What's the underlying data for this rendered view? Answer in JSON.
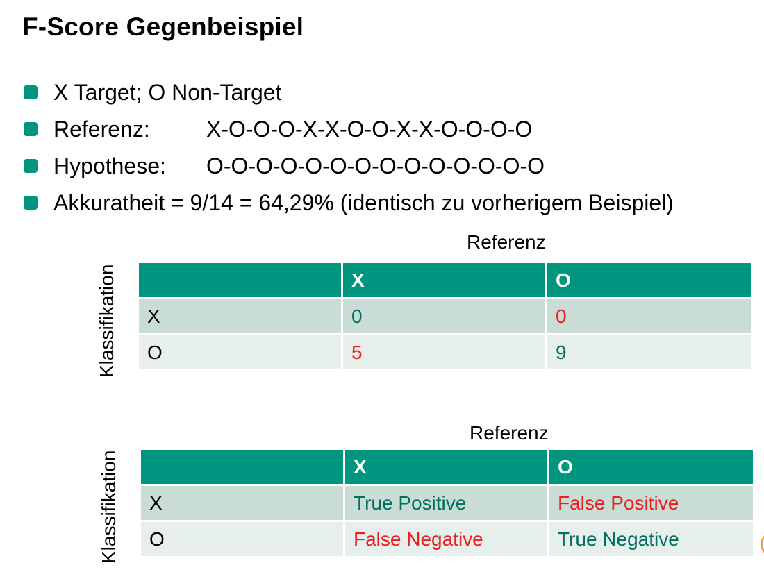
{
  "slide": {
    "title": "F-Score Gegenbeispiel",
    "bullets": [
      {
        "text": "X Target; O Non-Target",
        "value": ""
      },
      {
        "text": "Referenz:",
        "value": "X-O-O-O-X-X-O-O-X-X-O-O-O-O"
      },
      {
        "text": "Hypothese:",
        "value": "O-O-O-O-O-O-O-O-O-O-O-O-O-O"
      },
      {
        "text": "Akkuratheit = 9/14 = 64,29% (identisch zu vorherigem Beispiel)",
        "value": ""
      }
    ]
  },
  "table1": {
    "column_title": "Referenz",
    "row_title": "Klassifikation",
    "header": [
      "",
      "X",
      "O"
    ],
    "rows": [
      {
        "label": "X",
        "cells": [
          "0",
          "0"
        ]
      },
      {
        "label": "O",
        "cells": [
          "5",
          "9"
        ]
      }
    ]
  },
  "table2": {
    "column_title": "Referenz",
    "row_title": "Klassifikation",
    "header": [
      "",
      "X",
      "O"
    ],
    "rows": [
      {
        "label": "X",
        "cells": [
          "True Positive",
          "False Positive"
        ]
      },
      {
        "label": "O",
        "cells": [
          "False Negative",
          "True Negative"
        ]
      }
    ]
  },
  "colors": {
    "accent_teal": "#00957f",
    "text_teal": "#00705f",
    "text_red": "#ee1c1c",
    "row_dark": "#c9dcd6",
    "row_light": "#e6efec"
  }
}
